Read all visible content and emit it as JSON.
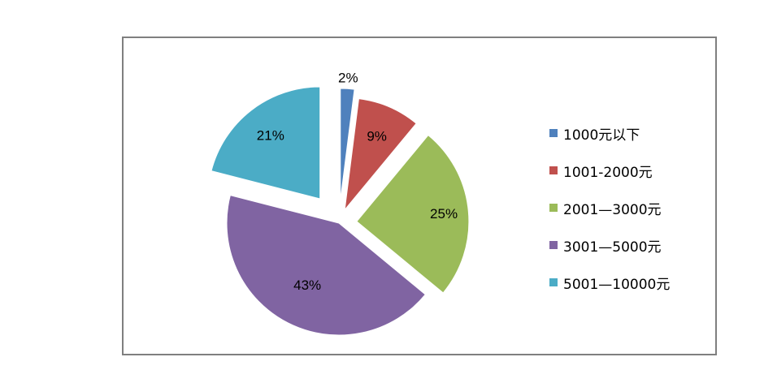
{
  "chart_data": {
    "type": "pie",
    "title": "",
    "categories": [
      "1000元以下",
      "1001-2000元",
      "2001—3000元",
      "3001—5000元",
      "5001—10000元"
    ],
    "values": [
      2,
      9,
      25,
      43,
      21
    ],
    "value_labels": [
      "2%",
      "9%",
      "25%",
      "43%",
      "21%"
    ],
    "colors": [
      "#4f81bd",
      "#c0504d",
      "#9bbb59",
      "#8064a2",
      "#4bacc6"
    ],
    "exploded": true,
    "start_angle": "top",
    "direction": "clockwise",
    "legend": {
      "position": "right",
      "items": [
        "1000元以下",
        "1001-2000元",
        "2001—3000元",
        "3001—5000元",
        "5001—10000元"
      ]
    }
  }
}
